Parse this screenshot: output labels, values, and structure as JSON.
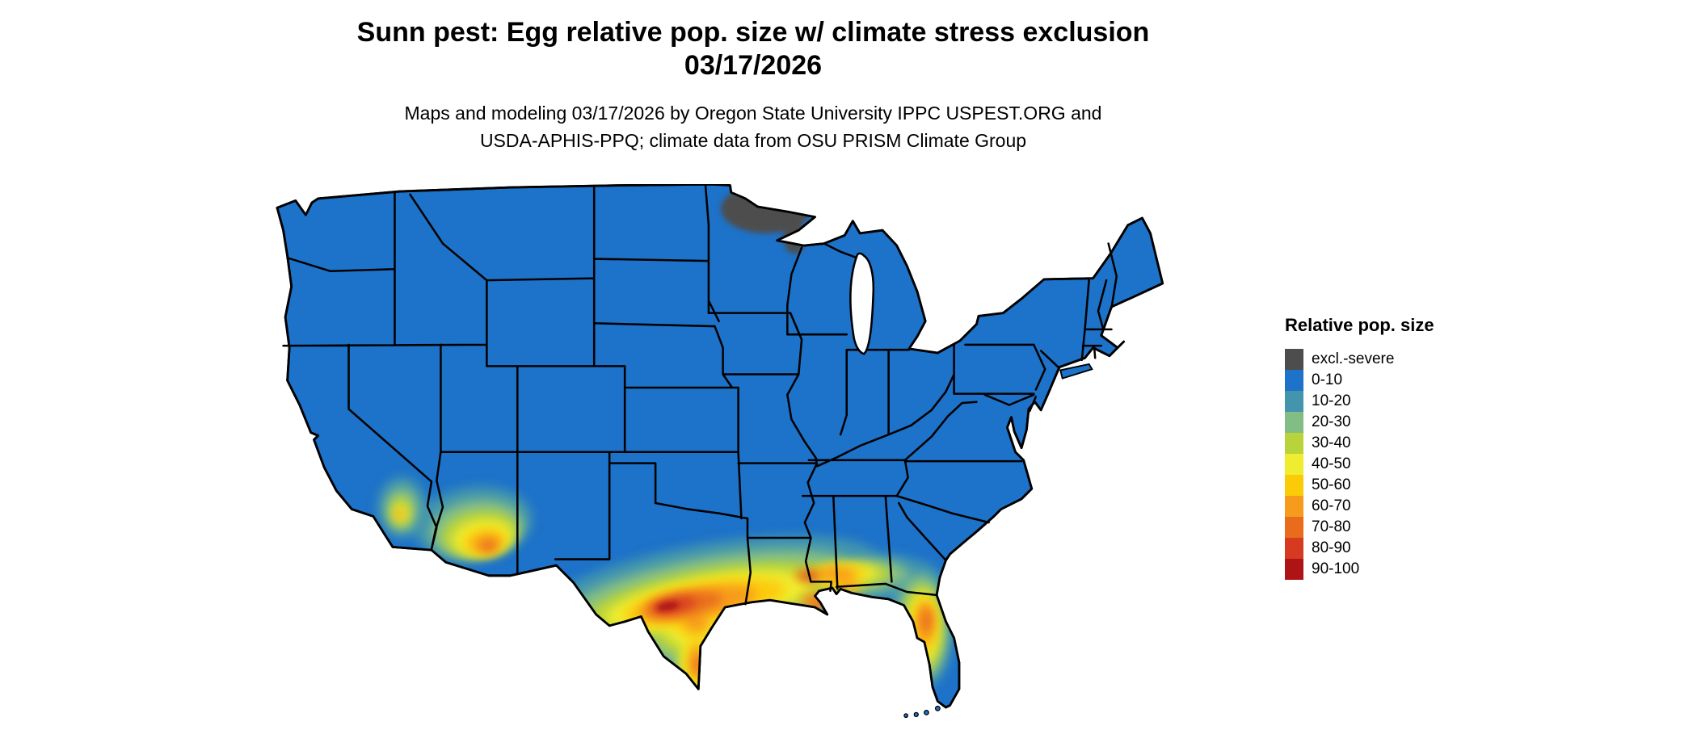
{
  "header": {
    "title_line1": "Sunn pest: Egg relative pop. size w/ climate stress exclusion",
    "title_line2": "03/17/2026",
    "subtitle_line1": "Maps and modeling 03/17/2026 by Oregon State University IPPC USPEST.ORG and",
    "subtitle_line2": "USDA-APHIS-PPQ; climate data from OSU PRISM Climate Group"
  },
  "legend": {
    "title": "Relative pop. size",
    "items": [
      {
        "label": "excl.-severe",
        "color": "#4d4d4d"
      },
      {
        "label": "0-10",
        "color": "#1d72c9"
      },
      {
        "label": "10-20",
        "color": "#4395ad"
      },
      {
        "label": "20-30",
        "color": "#82bd86"
      },
      {
        "label": "30-40",
        "color": "#b9d43a"
      },
      {
        "label": "40-50",
        "color": "#f0ec2f"
      },
      {
        "label": "50-60",
        "color": "#fccb08"
      },
      {
        "label": "60-70",
        "color": "#f79b1d"
      },
      {
        "label": "70-80",
        "color": "#e96c1d"
      },
      {
        "label": "80-90",
        "color": "#d63a20"
      },
      {
        "label": "90-100",
        "color": "#ae1416"
      }
    ]
  },
  "map": {
    "region": "Contiguous United States",
    "base_fill_category": "0-10",
    "excluded_areas": [
      "northern Minnesota (excl.-severe)"
    ],
    "hotspots": [
      {
        "area": "southern Texas / Rio Grande valley",
        "max_category": "90-100"
      },
      {
        "area": "Texas-Louisiana Gulf Coast",
        "max_category": "80-90"
      },
      {
        "area": "southern Mississippi / Alabama coast",
        "max_category": "70-80"
      },
      {
        "area": "central Florida",
        "max_category": "70-80"
      },
      {
        "area": "southern Arizona",
        "max_category": "70-80"
      },
      {
        "area": "southern California",
        "max_category": "60-70"
      }
    ]
  }
}
